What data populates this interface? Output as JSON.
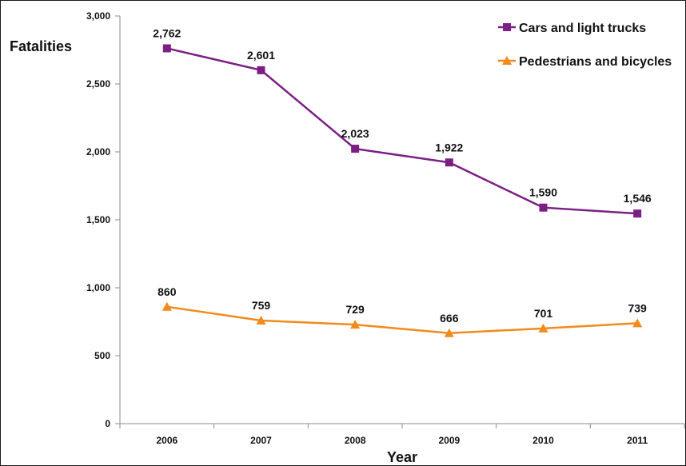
{
  "chart_data": {
    "type": "line",
    "title": "",
    "xlabel": "Year",
    "ylabel": "Fatalities",
    "x": [
      "2006",
      "2007",
      "2008",
      "2009",
      "2010",
      "2011"
    ],
    "ylim": [
      0,
      3000
    ],
    "y_ticks": [
      0,
      500,
      1000,
      1500,
      2000,
      2500,
      3000
    ],
    "y_tick_labels": [
      "0",
      "500",
      "1,000",
      "1,500",
      "2,000",
      "2,500",
      "3,000"
    ],
    "grid": false,
    "legend_position": "top-right",
    "series": [
      {
        "name": "Cars and light trucks",
        "color": "#7b1f84",
        "marker": "square",
        "values": [
          2762,
          2601,
          2023,
          1922,
          1590,
          1546
        ],
        "labels": [
          "2,762",
          "2,601",
          "2,023",
          "1,922",
          "1,590",
          "1,546"
        ]
      },
      {
        "name": "Pedestrians and bicycles",
        "color": "#f28a1c",
        "marker": "triangle",
        "values": [
          860,
          759,
          729,
          666,
          701,
          739
        ],
        "labels": [
          "860",
          "759",
          "729",
          "666",
          "701",
          "739"
        ]
      }
    ]
  }
}
